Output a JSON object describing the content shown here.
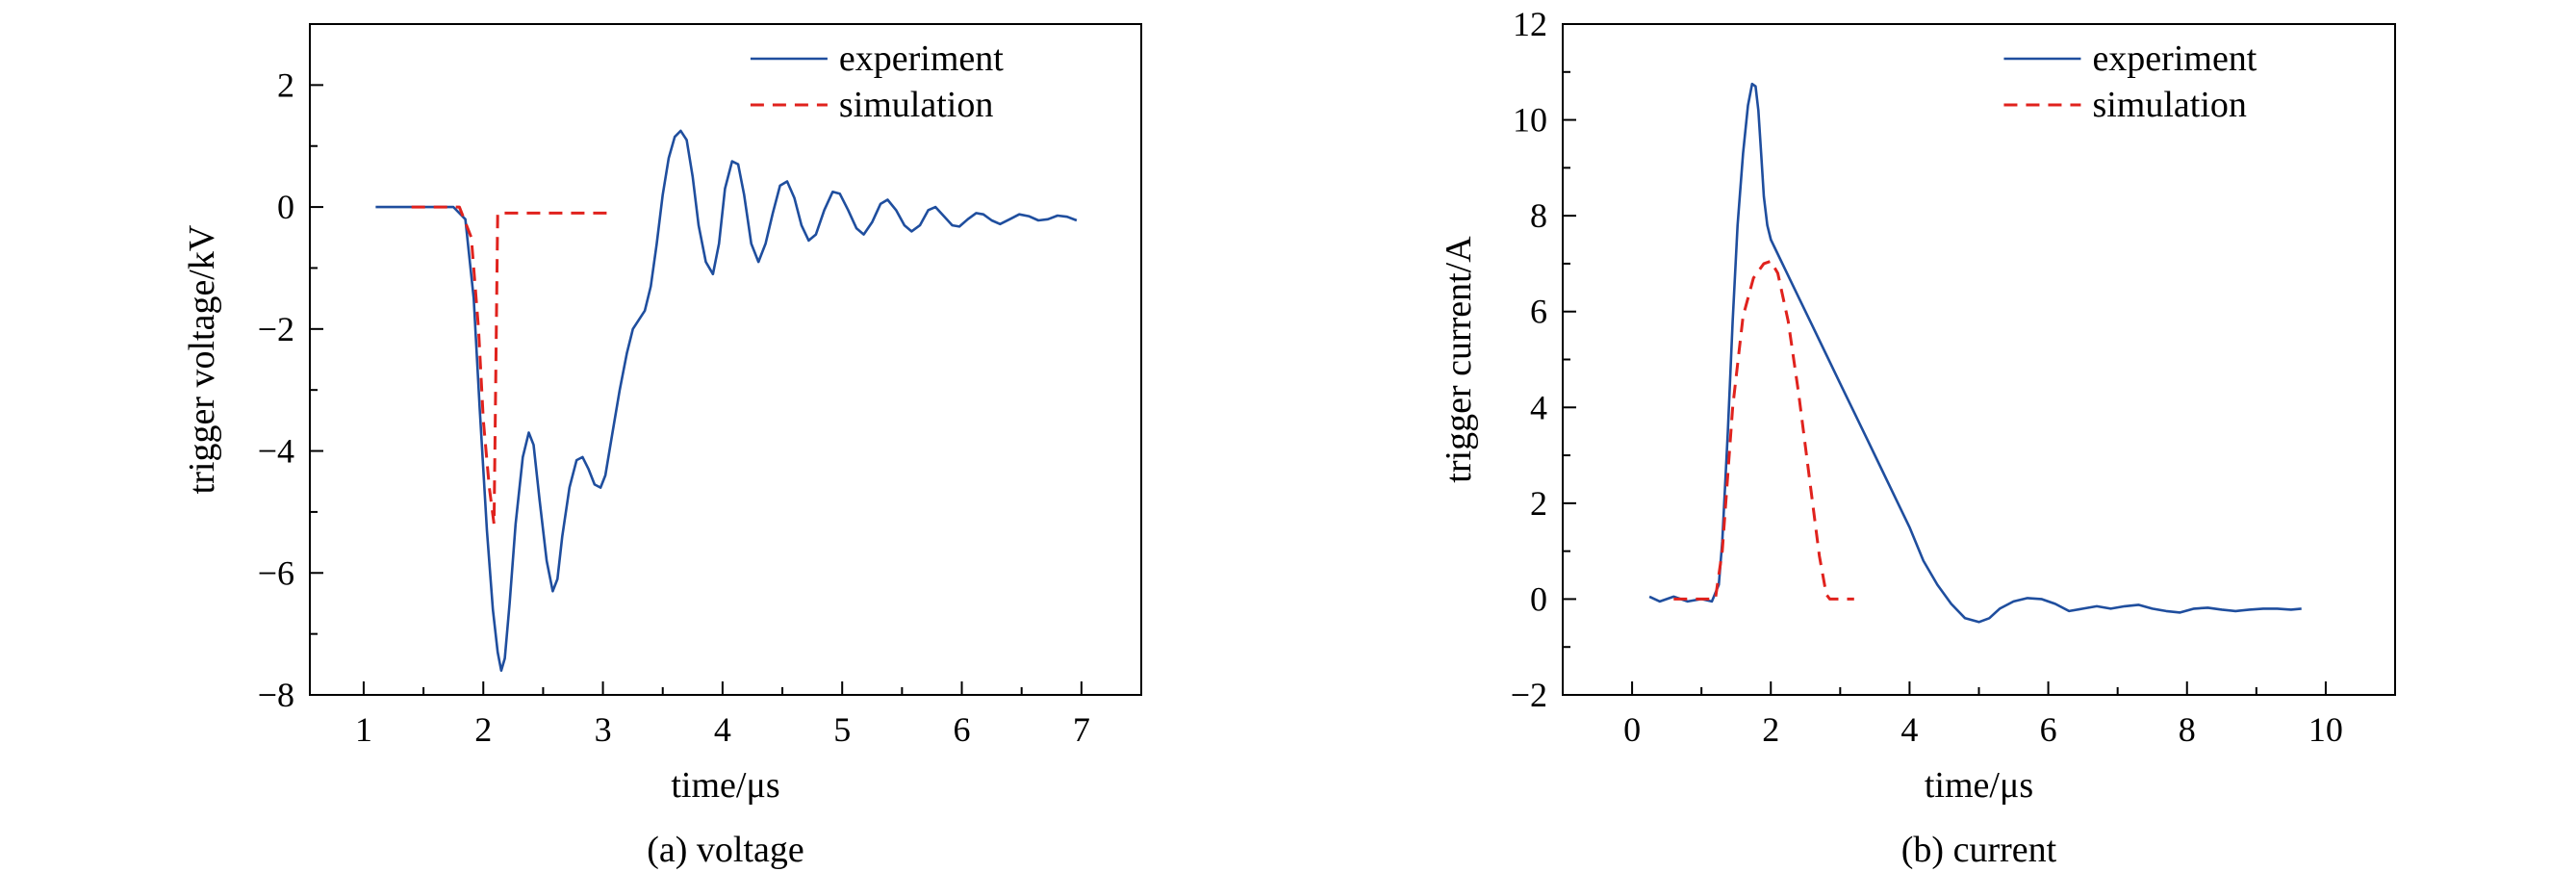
{
  "chart_data": [
    {
      "type": "line",
      "caption": "(a) voltage",
      "xlabel": "time/μs",
      "ylabel": "trigger voltage/kV",
      "xlim": [
        0.55,
        7.5
      ],
      "ylim": [
        -8,
        3
      ],
      "xticks": [
        1,
        2,
        3,
        4,
        5,
        6,
        7
      ],
      "yticks": [
        -8,
        -6,
        -4,
        -2,
        0,
        2
      ],
      "ytick_labels": [
        "−8",
        "−6",
        "−4",
        "−2",
        "0",
        "2"
      ],
      "legend": {
        "position": "top-right"
      },
      "grid": false,
      "series": [
        {
          "name": "experiment",
          "color": "#1f4e9e",
          "style": "solid",
          "x": [
            1.1,
            1.5,
            1.75,
            1.85,
            1.92,
            1.97,
            2.03,
            2.08,
            2.12,
            2.15,
            2.18,
            2.22,
            2.27,
            2.33,
            2.38,
            2.42,
            2.47,
            2.53,
            2.58,
            2.62,
            2.66,
            2.72,
            2.78,
            2.83,
            2.88,
            2.93,
            2.98,
            3.02,
            3.08,
            3.14,
            3.2,
            3.25,
            3.3,
            3.35,
            3.4,
            3.45,
            3.5,
            3.55,
            3.6,
            3.65,
            3.7,
            3.75,
            3.8,
            3.86,
            3.92,
            3.97,
            4.02,
            4.08,
            4.13,
            4.18,
            4.24,
            4.3,
            4.36,
            4.42,
            4.48,
            4.54,
            4.6,
            4.66,
            4.72,
            4.78,
            4.85,
            4.92,
            4.98,
            5.05,
            5.12,
            5.18,
            5.25,
            5.32,
            5.38,
            5.45,
            5.52,
            5.58,
            5.65,
            5.72,
            5.78,
            5.85,
            5.92,
            5.98,
            6.05,
            6.12,
            6.18,
            6.25,
            6.32,
            6.4,
            6.48,
            6.56,
            6.64,
            6.72,
            6.8,
            6.88,
            6.96
          ],
          "y": [
            0.0,
            0.0,
            0.0,
            -0.2,
            -1.5,
            -3.3,
            -5.3,
            -6.6,
            -7.3,
            -7.6,
            -7.4,
            -6.5,
            -5.2,
            -4.1,
            -3.7,
            -3.9,
            -4.8,
            -5.8,
            -6.3,
            -6.1,
            -5.4,
            -4.6,
            -4.15,
            -4.1,
            -4.3,
            -4.55,
            -4.6,
            -4.4,
            -3.7,
            -3.0,
            -2.4,
            -2.0,
            -1.85,
            -1.7,
            -1.3,
            -0.6,
            0.2,
            0.8,
            1.15,
            1.25,
            1.1,
            0.5,
            -0.3,
            -0.9,
            -1.1,
            -0.6,
            0.3,
            0.75,
            0.7,
            0.2,
            -0.6,
            -0.9,
            -0.6,
            -0.1,
            0.35,
            0.42,
            0.15,
            -0.3,
            -0.55,
            -0.45,
            -0.05,
            0.25,
            0.22,
            -0.05,
            -0.35,
            -0.45,
            -0.25,
            0.05,
            0.12,
            -0.05,
            -0.3,
            -0.4,
            -0.3,
            -0.05,
            0.0,
            -0.15,
            -0.3,
            -0.32,
            -0.2,
            -0.1,
            -0.12,
            -0.22,
            -0.28,
            -0.2,
            -0.12,
            -0.15,
            -0.22,
            -0.2,
            -0.14,
            -0.16,
            -0.22
          ]
        },
        {
          "name": "simulation",
          "color": "#e0221d",
          "style": "dashed",
          "x": [
            1.4,
            1.8,
            1.9,
            1.96,
            2.0,
            2.05,
            2.09,
            2.12,
            2.15,
            3.05
          ],
          "y": [
            0.0,
            0.0,
            -0.5,
            -2.0,
            -3.5,
            -4.6,
            -5.2,
            -0.1,
            -0.1,
            -0.1
          ]
        }
      ]
    },
    {
      "type": "line",
      "caption": "(b) current",
      "xlabel": "time/μs",
      "ylabel": "trigger current/A",
      "xlim": [
        -1.0,
        11.0
      ],
      "ylim": [
        -2,
        12
      ],
      "xticks": [
        0,
        2,
        4,
        6,
        8,
        10
      ],
      "yticks": [
        -2,
        0,
        2,
        4,
        6,
        8,
        10,
        12
      ],
      "ytick_labels": [
        "−2",
        "0",
        "2",
        "4",
        "6",
        "8",
        "10",
        "12"
      ],
      "legend": {
        "position": "top-right"
      },
      "grid": false,
      "series": [
        {
          "name": "experiment",
          "color": "#1f4e9e",
          "style": "solid",
          "x": [
            0.25,
            0.4,
            0.6,
            0.8,
            1.0,
            1.15,
            1.25,
            1.3,
            1.38,
            1.45,
            1.52,
            1.6,
            1.67,
            1.73,
            1.78,
            1.82,
            1.86,
            1.9,
            1.95,
            2.0,
            2.05,
            2.1,
            2.2,
            2.4,
            2.6,
            2.8,
            3.0,
            3.2,
            3.4,
            3.6,
            3.8,
            4.0,
            4.2,
            4.4,
            4.6,
            4.8,
            5.0,
            5.15,
            5.3,
            5.5,
            5.7,
            5.9,
            6.1,
            6.3,
            6.5,
            6.7,
            6.9,
            7.1,
            7.3,
            7.5,
            7.7,
            7.9,
            8.1,
            8.3,
            8.5,
            8.7,
            8.9,
            9.1,
            9.3,
            9.5,
            9.65
          ],
          "y": [
            0.05,
            -0.05,
            0.05,
            -0.05,
            0.0,
            -0.05,
            0.3,
            1.2,
            3.5,
            5.8,
            7.8,
            9.3,
            10.3,
            10.75,
            10.7,
            10.2,
            9.3,
            8.4,
            7.8,
            7.5,
            7.35,
            7.2,
            6.9,
            6.3,
            5.7,
            5.1,
            4.5,
            3.9,
            3.3,
            2.7,
            2.1,
            1.5,
            0.8,
            0.3,
            -0.1,
            -0.4,
            -0.48,
            -0.4,
            -0.2,
            -0.05,
            0.02,
            0.0,
            -0.1,
            -0.25,
            -0.2,
            -0.15,
            -0.2,
            -0.15,
            -0.12,
            -0.2,
            -0.25,
            -0.28,
            -0.2,
            -0.18,
            -0.22,
            -0.25,
            -0.22,
            -0.2,
            -0.2,
            -0.22,
            -0.2
          ]
        },
        {
          "name": "simulation",
          "color": "#e0221d",
          "style": "dashed",
          "x": [
            0.6,
            1.2,
            1.3,
            1.45,
            1.6,
            1.75,
            1.9,
            2.0,
            2.1,
            2.25,
            2.4,
            2.55,
            2.7,
            2.8,
            2.85,
            3.2
          ],
          "y": [
            0.0,
            0.0,
            1.0,
            4.0,
            5.9,
            6.7,
            7.0,
            7.05,
            6.8,
            5.8,
            4.3,
            2.6,
            0.9,
            0.1,
            0.0,
            0.0
          ]
        }
      ]
    }
  ]
}
